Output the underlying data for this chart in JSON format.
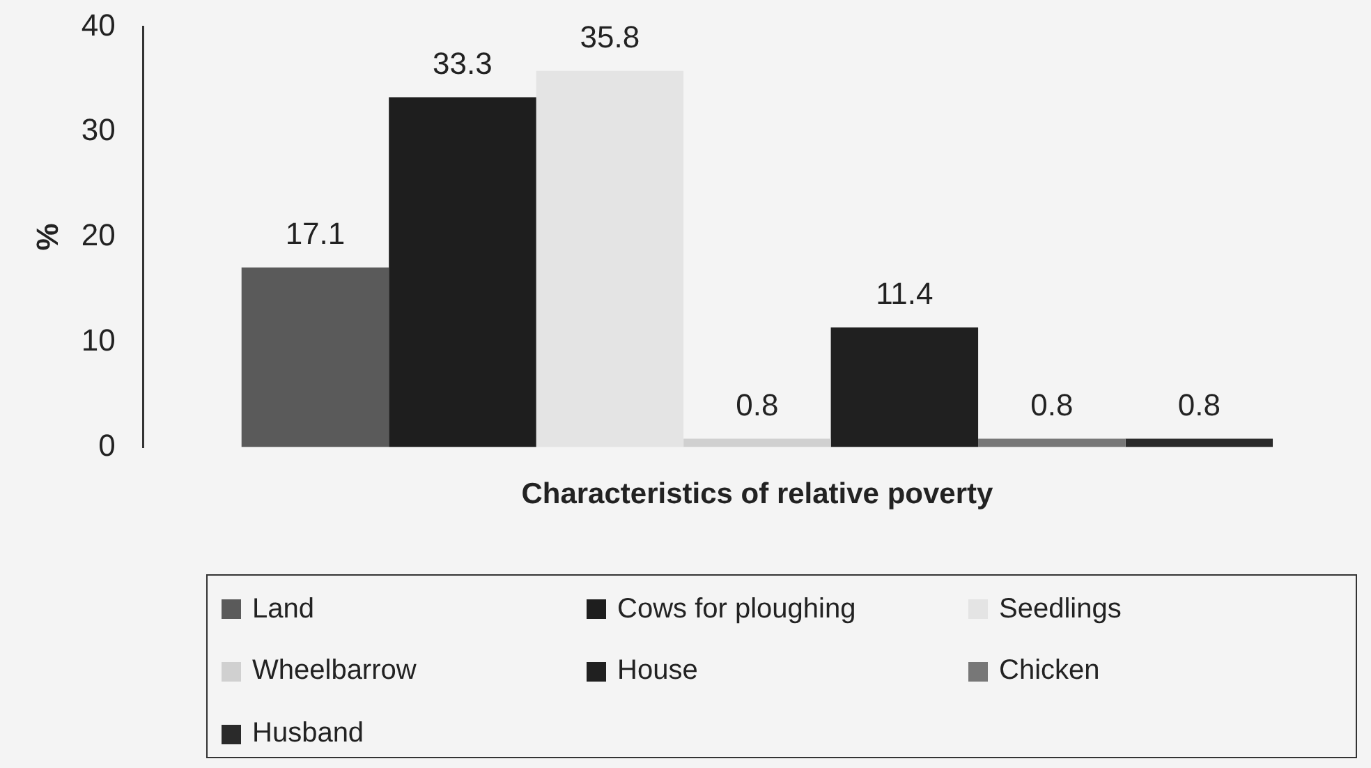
{
  "chart_data": {
    "type": "bar",
    "xlabel": "Characteristics of relative poverty",
    "ylabel": "%",
    "categories": [
      null
    ],
    "series": [
      {
        "name": "Land",
        "color": "#5a5a5a",
        "values": [
          17.1
        ]
      },
      {
        "name": "Cows for ploughing",
        "color": "#1e1e1e",
        "values": [
          33.3
        ]
      },
      {
        "name": "Seedlings",
        "color": "#e4e4e4",
        "values": [
          35.8
        ]
      },
      {
        "name": "Wheelbarrow",
        "color": "#d0d0d0",
        "values": [
          0.8
        ]
      },
      {
        "name": "House",
        "color": "#202020",
        "values": [
          11.4
        ]
      },
      {
        "name": "Chicken",
        "color": "#777777",
        "values": [
          0.8
        ]
      },
      {
        "name": "Husband",
        "color": "#2a2a2a",
        "values": [
          0.8
        ]
      }
    ],
    "ylim": [
      0,
      40
    ],
    "yticks": [
      0,
      10,
      20,
      30,
      40
    ],
    "grid": false,
    "legend": "bottom",
    "data_labels": true,
    "tick_labels": "y"
  }
}
